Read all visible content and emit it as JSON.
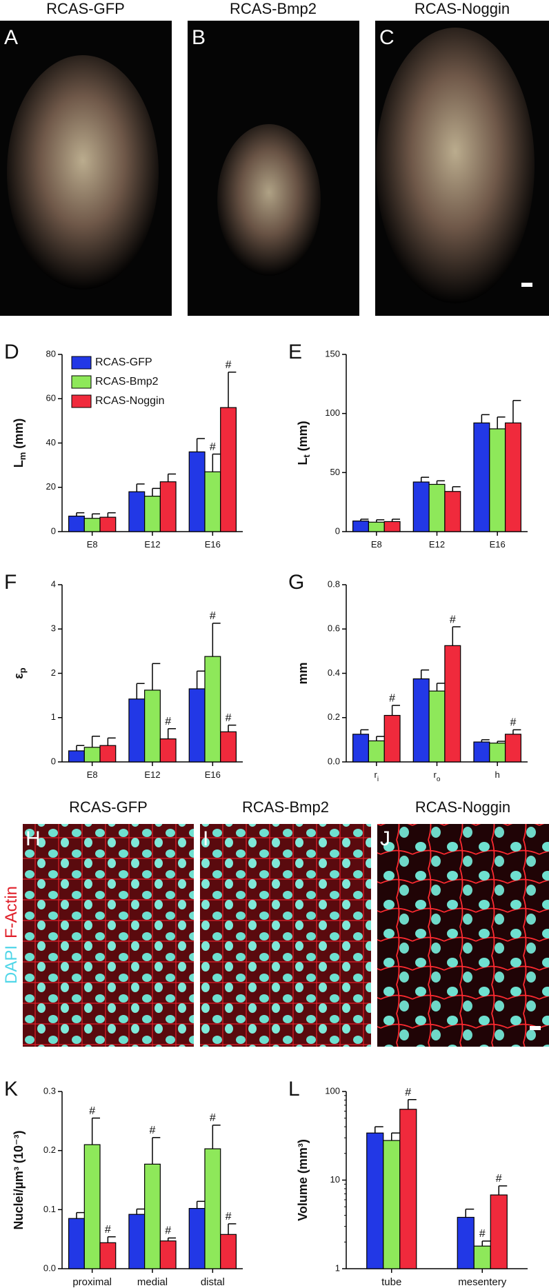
{
  "top_panels": {
    "titles": [
      "RCAS-GFP",
      "RCAS-Bmp2",
      "RCAS-Noggin"
    ],
    "letters": [
      "A",
      "B",
      "C"
    ]
  },
  "micro_panels": {
    "titles": [
      "RCAS-GFP",
      "RCAS-Bmp2",
      "RCAS-Noggin"
    ],
    "letters": [
      "H",
      "I",
      "J"
    ],
    "stain_dapi": "DAPI",
    "stain_actin": "F-Actin"
  },
  "chart_data": [
    {
      "type": "bar",
      "letter": "D",
      "ylabel": "L",
      "ylabel_sub": "m",
      "ylabel_tail": " (mm)",
      "categories": [
        "E8",
        "E12",
        "E16"
      ],
      "ylim": [
        0,
        80
      ],
      "yticks": [
        0,
        20,
        40,
        60,
        80
      ],
      "legend": "upper left",
      "series": [
        {
          "name": "RCAS-GFP",
          "color": "#2238e6",
          "values": [
            7,
            18,
            36
          ],
          "errors": [
            1.5,
            3.5,
            6
          ],
          "annotations": [
            null,
            null,
            null
          ]
        },
        {
          "name": "RCAS-Bmp2",
          "color": "#8ee85a",
          "values": [
            6,
            16,
            27
          ],
          "errors": [
            2,
            3.5,
            8
          ],
          "annotations": [
            null,
            null,
            "#"
          ]
        },
        {
          "name": "RCAS-Noggin",
          "color": "#f02a3c",
          "values": [
            6.5,
            22.5,
            56
          ],
          "errors": [
            2,
            3.5,
            16
          ],
          "annotations": [
            null,
            null,
            "#"
          ]
        }
      ]
    },
    {
      "type": "bar",
      "letter": "E",
      "ylabel": "L",
      "ylabel_sub": "t",
      "ylabel_tail": " (mm)",
      "categories": [
        "E8",
        "E12",
        "E16"
      ],
      "ylim": [
        0,
        150
      ],
      "yticks": [
        0,
        50,
        100,
        150
      ],
      "series": [
        {
          "color": "#2238e6",
          "values": [
            9,
            42,
            92
          ],
          "errors": [
            1.5,
            4,
            7
          ],
          "annotations": [
            null,
            null,
            null
          ]
        },
        {
          "color": "#8ee85a",
          "values": [
            8,
            40,
            87
          ],
          "errors": [
            2,
            3,
            10
          ],
          "annotations": [
            null,
            null,
            null
          ]
        },
        {
          "color": "#f02a3c",
          "values": [
            8.5,
            34,
            92
          ],
          "errors": [
            2,
            4,
            19
          ],
          "annotations": [
            null,
            null,
            null
          ]
        }
      ]
    },
    {
      "type": "bar",
      "letter": "F",
      "ylabel": "ε",
      "ylabel_sub": "p",
      "categories": [
        "E8",
        "E12",
        "E16"
      ],
      "ylim": [
        0,
        4
      ],
      "yticks": [
        0,
        1,
        2,
        3,
        4
      ],
      "series": [
        {
          "color": "#2238e6",
          "values": [
            0.25,
            1.42,
            1.65
          ],
          "errors": [
            0.12,
            0.35,
            0.4
          ],
          "annotations": [
            null,
            null,
            null
          ]
        },
        {
          "color": "#8ee85a",
          "values": [
            0.33,
            1.62,
            2.38
          ],
          "errors": [
            0.25,
            0.6,
            0.75
          ],
          "annotations": [
            null,
            null,
            "#"
          ]
        },
        {
          "color": "#f02a3c",
          "values": [
            0.37,
            0.52,
            0.68
          ],
          "errors": [
            0.17,
            0.23,
            0.15
          ],
          "annotations": [
            null,
            "#",
            "#"
          ]
        }
      ]
    },
    {
      "type": "bar",
      "letter": "G",
      "ylabel": "mm",
      "categories": [
        "r",
        "r",
        "h"
      ],
      "category_subs": [
        "i",
        "o",
        null
      ],
      "ylim": [
        0,
        0.8
      ],
      "yticks": [
        {
          "value": 0,
          "label": "0.0"
        },
        0.2,
        0.4,
        0.6,
        0.8
      ],
      "series": [
        {
          "color": "#2238e6",
          "values": [
            0.125,
            0.375,
            0.09
          ],
          "errors": [
            0.02,
            0.04,
            0.01
          ],
          "annotations": [
            null,
            null,
            null
          ]
        },
        {
          "color": "#8ee85a",
          "values": [
            0.095,
            0.32,
            0.085
          ],
          "errors": [
            0.02,
            0.035,
            0.008
          ],
          "annotations": [
            null,
            null,
            null
          ]
        },
        {
          "color": "#f02a3c",
          "values": [
            0.21,
            0.525,
            0.125
          ],
          "errors": [
            0.045,
            0.085,
            0.02
          ],
          "annotations": [
            "#",
            "#",
            "#"
          ]
        }
      ]
    },
    {
      "type": "bar",
      "letter": "K",
      "ylabel": "Nuclei/µm³ (10⁻³)",
      "categories": [
        "proximal",
        "medial",
        "distal"
      ],
      "ylim": [
        0,
        0.3
      ],
      "yticks": [
        {
          "value": 0,
          "label": "0.0"
        },
        0.1,
        0.2,
        0.3
      ],
      "series": [
        {
          "color": "#2238e6",
          "values": [
            0.085,
            0.092,
            0.102
          ],
          "errors": [
            0.01,
            0.009,
            0.012
          ],
          "annotations": [
            null,
            null,
            null
          ]
        },
        {
          "color": "#8ee85a",
          "values": [
            0.21,
            0.177,
            0.203
          ],
          "errors": [
            0.045,
            0.045,
            0.04
          ],
          "annotations": [
            "#",
            "#",
            "#"
          ]
        },
        {
          "color": "#f02a3c",
          "values": [
            0.044,
            0.047,
            0.058
          ],
          "errors": [
            0.01,
            0.005,
            0.018
          ],
          "annotations": [
            "#",
            "#",
            "#"
          ]
        }
      ]
    },
    {
      "type": "bar",
      "letter": "L",
      "ylabel": "Volume (mm³)",
      "log_scale": true,
      "categories": [
        "tube",
        "mesentery"
      ],
      "ylim": [
        1,
        100
      ],
      "yticks": [
        1,
        10,
        100
      ],
      "series": [
        {
          "color": "#2238e6",
          "values": [
            34,
            3.8
          ],
          "errors": [
            6,
            0.9
          ],
          "annotations": [
            null,
            null
          ]
        },
        {
          "color": "#8ee85a",
          "values": [
            28,
            1.8
          ],
          "errors": [
            6,
            0.25
          ],
          "annotations": [
            null,
            "#"
          ]
        },
        {
          "color": "#f02a3c",
          "values": [
            63,
            6.8
          ],
          "errors": [
            18,
            1.8
          ],
          "annotations": [
            "#",
            "#"
          ]
        }
      ]
    }
  ]
}
